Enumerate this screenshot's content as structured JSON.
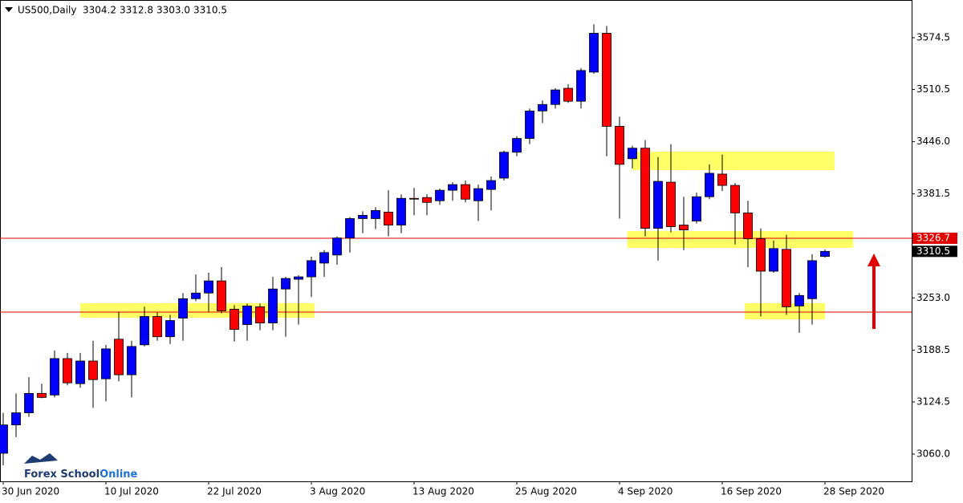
{
  "chart_data": {
    "type": "candlestick",
    "title": "US500,Daily",
    "header_values": [
      "3304.2",
      "3312.8",
      "3303.0",
      "3310.5"
    ],
    "logo": [
      "Forex School",
      "Online"
    ],
    "categories": [
      "30 Jun 2020",
      null,
      null,
      null,
      null,
      null,
      null,
      null,
      "10 Jul 2020",
      null,
      null,
      null,
      null,
      null,
      null,
      null,
      "22 Jul 2020",
      null,
      null,
      null,
      null,
      null,
      null,
      null,
      "3 Aug 2020",
      null,
      null,
      null,
      null,
      null,
      null,
      null,
      "13 Aug 2020",
      null,
      null,
      null,
      null,
      null,
      null,
      null,
      "25 Aug 2020",
      null,
      null,
      null,
      null,
      null,
      null,
      null,
      "4 Sep 2020",
      null,
      null,
      null,
      null,
      null,
      null,
      null,
      "16 Sep 2020",
      null,
      null,
      null,
      null,
      null,
      null,
      null,
      "28 Sep 2020"
    ],
    "open": [
      3061,
      3096,
      3111,
      3135,
      3133,
      3178,
      3147,
      3175,
      3153,
      3202,
      3158,
      3195,
      3230,
      3205,
      3228,
      3252,
      3259,
      3274,
      3239,
      3220,
      3242,
      3222,
      3264,
      3276,
      3279,
      3296,
      3306,
      3327,
      3351,
      3351,
      3359,
      3343,
      3376,
      3377,
      3373,
      3386,
      3393,
      3373,
      3387,
      3401,
      3433,
      3450,
      3484,
      3492,
      3512,
      3496,
      3532,
      3580,
      3465,
      3425,
      3438,
      3339,
      3396,
      3343,
      3348,
      3378,
      3406,
      3392,
      3358,
      3326,
      3286,
      3313,
      3243,
      3252,
      3304.2
    ],
    "high": [
      3111,
      3135,
      3155,
      3147,
      3188,
      3185,
      3185,
      3200,
      3195,
      3236,
      3200,
      3242,
      3235,
      3232,
      3259,
      3282,
      3284,
      3291,
      3244,
      3246,
      3246,
      3279,
      3279,
      3281,
      3304,
      3312,
      3329,
      3353,
      3360,
      3365,
      3386,
      3381,
      3389,
      3381,
      3388,
      3396,
      3398,
      3393,
      3403,
      3435,
      3453,
      3487,
      3497,
      3512,
      3517,
      3537,
      3591,
      3589,
      3477,
      3441,
      3448,
      3427,
      3443,
      3378,
      3383,
      3418,
      3430,
      3395,
      3373,
      3339,
      3324,
      3331,
      3259,
      3307,
      3312.8
    ],
    "low": [
      3046,
      3081,
      3106,
      3129,
      3130,
      3145,
      3142,
      3117,
      3125,
      3150,
      3130,
      3193,
      3200,
      3196,
      3200,
      3249,
      3236,
      3234,
      3199,
      3200,
      3213,
      3213,
      3205,
      3220,
      3254,
      3279,
      3294,
      3309,
      3333,
      3338,
      3329,
      3333,
      3355,
      3355,
      3368,
      3373,
      3371,
      3348,
      3361,
      3398,
      3428,
      3443,
      3469,
      3487,
      3494,
      3487,
      3530,
      3428,
      3351,
      3413,
      3329,
      3299,
      3334,
      3312,
      3345,
      3375,
      3385,
      3319,
      3291,
      3230,
      3284,
      3232,
      3210,
      3220,
      3303
    ],
    "close": [
      3096,
      3111,
      3135,
      3130,
      3178,
      3148,
      3175,
      3152,
      3190,
      3158,
      3193,
      3230,
      3205,
      3225,
      3252,
      3259,
      3274,
      3237,
      3214,
      3243,
      3222,
      3264,
      3277,
      3279,
      3299,
      3309,
      3327,
      3351,
      3355,
      3361,
      3343,
      3376,
      3375,
      3371,
      3386,
      3393,
      3375,
      3388,
      3398,
      3433,
      3450,
      3484,
      3492,
      3510,
      3496,
      3534,
      3580,
      3465,
      3418,
      3438,
      3339,
      3397,
      3341,
      3337,
      3378,
      3407,
      3392,
      3358,
      3326,
      3286,
      3314,
      3242,
      3256,
      3299,
      3310.5
    ],
    "up_color": "#0000ff",
    "down_color": "#ff0000",
    "zone_color": "#ffff66",
    "line_color": "#e00000",
    "hlines": [
      3326.7,
      3235.5
    ],
    "zones": [
      {
        "start": 6,
        "end": 24.25,
        "low": 3228.5,
        "high": 3246.4
      },
      {
        "start": 49,
        "end": 64.75,
        "low": 3410.9,
        "high": 3433.7
      },
      {
        "start": 48.6,
        "end": 66.2,
        "low": 3314.8,
        "high": 3335.6
      },
      {
        "start": 57.75,
        "end": 64,
        "low": 3226.5,
        "high": 3246.4
      }
    ],
    "ylim": [
      3026.3,
      3621.1
    ],
    "yticks": [
      {
        "value": 3060,
        "label": "3060.0"
      },
      3124.5,
      3188.5,
      {
        "value": 3253,
        "label": "3253.0"
      },
      3381.5,
      {
        "value": 3446,
        "label": "3446.0"
      },
      3510.5,
      3574.5
    ]
  }
}
